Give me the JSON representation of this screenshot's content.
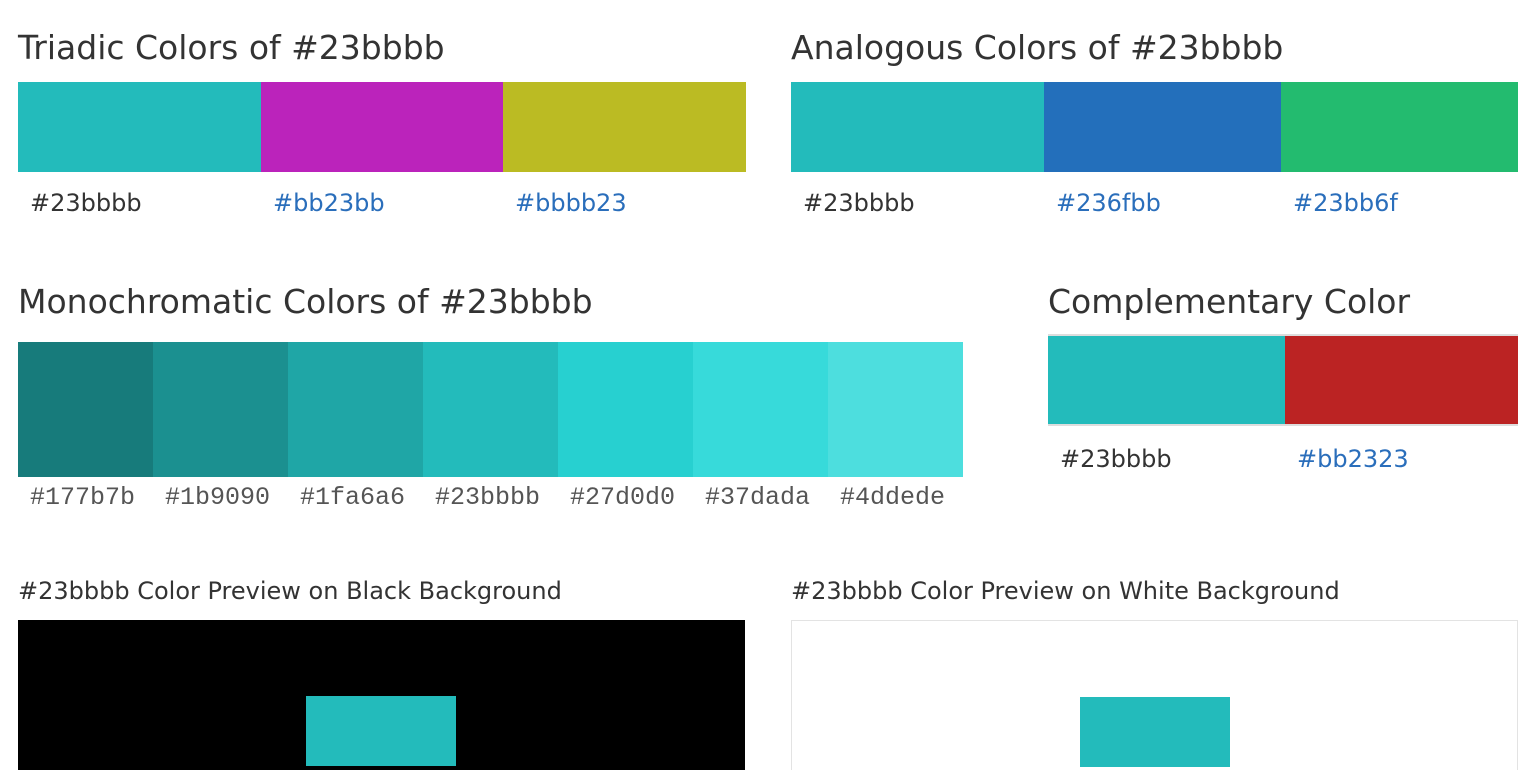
{
  "triadic": {
    "title": "Triadic Colors of #23bbbb",
    "colors": [
      {
        "hex": "#23bbbb",
        "label": "#23bbbb",
        "link": false
      },
      {
        "hex": "#bb23bb",
        "label": "#bb23bb",
        "link": true
      },
      {
        "hex": "#bbbb23",
        "label": "#bbbb23",
        "link": true
      }
    ]
  },
  "analogous": {
    "title": "Analogous Colors of #23bbbb",
    "colors": [
      {
        "hex": "#23bbbb",
        "label": "#23bbbb",
        "link": false
      },
      {
        "hex": "#236fbb",
        "label": "#236fbb",
        "link": true
      },
      {
        "hex": "#23bb6f",
        "label": "#23bb6f",
        "link": true
      }
    ]
  },
  "monochromatic": {
    "title": "Monochromatic Colors of #23bbbb",
    "colors": [
      {
        "hex": "#177b7b",
        "label": "#177b7b"
      },
      {
        "hex": "#1b9090",
        "label": "#1b9090"
      },
      {
        "hex": "#1fa6a6",
        "label": "#1fa6a6"
      },
      {
        "hex": "#23bbbb",
        "label": "#23bbbb"
      },
      {
        "hex": "#27d0d0",
        "label": "#27d0d0"
      },
      {
        "hex": "#37dada",
        "label": "#37dada"
      },
      {
        "hex": "#4ddede",
        "label": "#4ddede"
      }
    ]
  },
  "complementary": {
    "title": "Complementary Color",
    "colors": [
      {
        "hex": "#23bbbb",
        "label": "#23bbbb",
        "link": false
      },
      {
        "hex": "#bb2323",
        "label": "#bb2323",
        "link": true
      }
    ]
  },
  "preview_black": {
    "title": "#23bbbb Color Preview on Black Background",
    "background": "#000000",
    "color": "#23bbbb"
  },
  "preview_white": {
    "title": "#23bbbb Color Preview on White Background",
    "background": "#ffffff",
    "color": "#23bbbb"
  }
}
